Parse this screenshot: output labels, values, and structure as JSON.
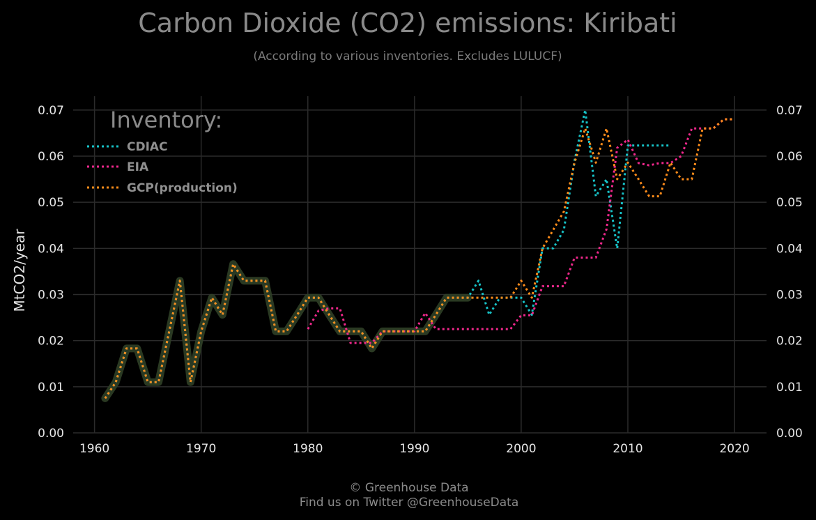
{
  "chart_data": {
    "type": "line",
    "title": "Carbon Dioxide (CO2) emissions: Kiribati",
    "subtitle": "(According to various inventories. Excludes LULUCF)",
    "xlabel": "",
    "ylabel": "MtCO2/year",
    "xlim": [
      1958,
      2023
    ],
    "ylim": [
      0,
      0.073
    ],
    "x_ticks": [
      1960,
      1970,
      1980,
      1990,
      2000,
      2010,
      2020
    ],
    "x_tick_labels": [
      "1960",
      "1970",
      "1980",
      "1990",
      "2000",
      "2010",
      "2020"
    ],
    "y_ticks": [
      0,
      0.01,
      0.02,
      0.03,
      0.04,
      0.05,
      0.06,
      0.07
    ],
    "y_tick_labels": [
      "0.00",
      "0.01",
      "0.02",
      "0.03",
      "0.04",
      "0.05",
      "0.06",
      "0.07"
    ],
    "grid": true,
    "legend_title": "Inventory:",
    "legend_position": "top-left",
    "series": [
      {
        "name": "CDIAC",
        "color": "#17c3c8",
        "x": [
          1961,
          1962,
          1963,
          1964,
          1965,
          1966,
          1967,
          1968,
          1969,
          1970,
          1971,
          1972,
          1973,
          1974,
          1975,
          1976,
          1977,
          1978,
          1979,
          1980,
          1981,
          1982,
          1983,
          1984,
          1985,
          1986,
          1987,
          1988,
          1989,
          1990,
          1991,
          1992,
          1993,
          1994,
          1995,
          1996,
          1997,
          1998,
          1999,
          2000,
          2001,
          2002,
          2003,
          2004,
          2005,
          2006,
          2007,
          2008,
          2009,
          2010,
          2011,
          2012,
          2013,
          2014
        ],
        "values": [
          0.0075,
          0.011,
          0.0183,
          0.0183,
          0.011,
          0.011,
          0.022,
          0.033,
          0.011,
          0.022,
          0.0293,
          0.0256,
          0.0366,
          0.033,
          0.033,
          0.033,
          0.022,
          0.022,
          0.0256,
          0.0293,
          0.0293,
          0.0256,
          0.022,
          0.022,
          0.022,
          0.0183,
          0.022,
          0.022,
          0.022,
          0.022,
          0.022,
          0.0256,
          0.0293,
          0.0293,
          0.0293,
          0.033,
          0.0256,
          0.0293,
          0.0293,
          0.0293,
          0.0256,
          0.04,
          0.04,
          0.044,
          0.059,
          0.07,
          0.0513,
          0.055,
          0.04,
          0.0623,
          0.0623,
          0.0623,
          0.0623,
          0.0623
        ]
      },
      {
        "name": "EIA",
        "color": "#f0288c",
        "x": [
          1980,
          1981,
          1982,
          1983,
          1984,
          1985,
          1986,
          1987,
          1988,
          1989,
          1990,
          1991,
          1992,
          1993,
          1994,
          1995,
          1996,
          1997,
          1998,
          1999,
          2000,
          2001,
          2002,
          2003,
          2004,
          2005,
          2006,
          2007,
          2008,
          2009,
          2010,
          2011,
          2012,
          2013,
          2014,
          2015,
          2016,
          2017,
          2018,
          2019,
          2020
        ],
        "values": [
          0.0225,
          0.0265,
          0.027,
          0.027,
          0.0195,
          0.0195,
          0.0195,
          0.022,
          0.022,
          0.022,
          0.022,
          0.026,
          0.0225,
          0.0225,
          0.0225,
          0.0225,
          0.0225,
          0.0225,
          0.0225,
          0.0225,
          0.0255,
          0.0255,
          0.0318,
          0.0318,
          0.0318,
          0.038,
          0.038,
          0.038,
          0.0442,
          0.0618,
          0.0636,
          0.0585,
          0.058,
          0.0585,
          0.0585,
          0.06,
          0.066,
          0.066,
          0.066,
          0.068,
          0.068
        ]
      },
      {
        "name": "GCP(production)",
        "color": "#ff8c1a",
        "x": [
          1961,
          1962,
          1963,
          1964,
          1965,
          1966,
          1967,
          1968,
          1969,
          1970,
          1971,
          1972,
          1973,
          1974,
          1975,
          1976,
          1977,
          1978,
          1979,
          1980,
          1981,
          1982,
          1983,
          1984,
          1985,
          1986,
          1987,
          1988,
          1989,
          1990,
          1991,
          1992,
          1993,
          1994,
          1995,
          1996,
          1997,
          1998,
          1999,
          2000,
          2001,
          2002,
          2003,
          2004,
          2005,
          2006,
          2007,
          2008,
          2009,
          2010,
          2011,
          2012,
          2013,
          2014,
          2015,
          2016,
          2017,
          2018,
          2019,
          2020
        ],
        "values": [
          0.0075,
          0.011,
          0.0183,
          0.0183,
          0.011,
          0.011,
          0.022,
          0.033,
          0.011,
          0.022,
          0.0293,
          0.0256,
          0.0366,
          0.033,
          0.033,
          0.033,
          0.022,
          0.022,
          0.0256,
          0.0293,
          0.0293,
          0.0256,
          0.022,
          0.022,
          0.022,
          0.0183,
          0.022,
          0.022,
          0.022,
          0.022,
          0.022,
          0.0256,
          0.0293,
          0.0293,
          0.0293,
          0.0293,
          0.0293,
          0.0293,
          0.0293,
          0.033,
          0.0293,
          0.04,
          0.044,
          0.048,
          0.0586,
          0.066,
          0.0586,
          0.066,
          0.055,
          0.0586,
          0.055,
          0.0513,
          0.0513,
          0.0586,
          0.055,
          0.055,
          0.066,
          0.066,
          0.068,
          0.068
        ]
      }
    ]
  },
  "footer": {
    "line1": "© Greenhouse Data",
    "line2": "Find us on Twitter @GreenhouseData"
  }
}
